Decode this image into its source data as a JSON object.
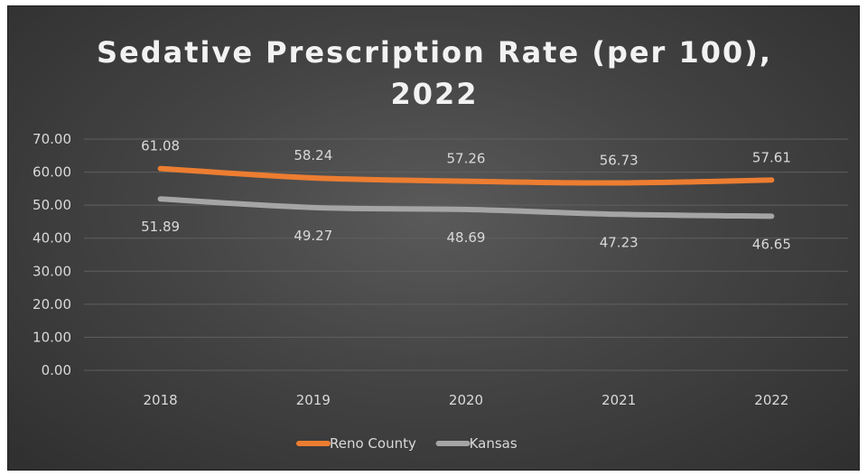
{
  "chart_data": {
    "type": "line",
    "title": "Sedative Prescription Rate (per 100),",
    "title_line2": "2022",
    "categories": [
      "2018",
      "2019",
      "2020",
      "2021",
      "2022"
    ],
    "ylim": [
      0,
      70
    ],
    "yticks": [
      "0.00",
      "10.00",
      "20.00",
      "30.00",
      "40.00",
      "50.00",
      "60.00",
      "70.00"
    ],
    "grid": true,
    "legend_position": "bottom",
    "series": [
      {
        "name": "Reno County",
        "values": [
          61.08,
          58.24,
          57.26,
          56.73,
          57.61
        ],
        "labels": [
          "61.08",
          "58.24",
          "57.26",
          "56.73",
          "57.61"
        ],
        "color": "#ed7d31",
        "label_position": "above"
      },
      {
        "name": "Kansas",
        "values": [
          51.89,
          49.27,
          48.69,
          47.23,
          46.65
        ],
        "labels": [
          "51.89",
          "49.27",
          "48.69",
          "47.23",
          "46.65"
        ],
        "color": "#a5a5a5",
        "label_position": "below"
      }
    ]
  }
}
